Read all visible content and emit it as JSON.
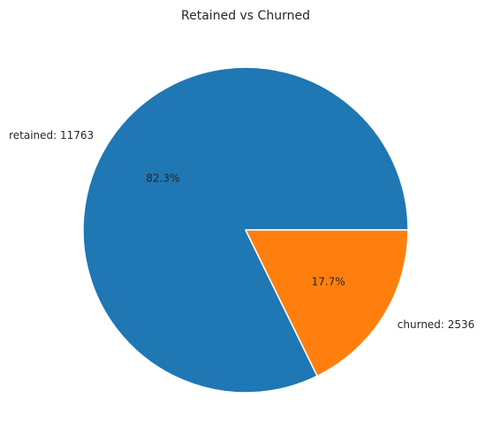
{
  "chart_data": {
    "type": "pie",
    "title": "Retained vs Churned",
    "slices": [
      {
        "label": "retained",
        "value": 11763,
        "display_label": "retained: 11763",
        "pct_label": "82.3%",
        "color": "#1f77b4"
      },
      {
        "label": "churned",
        "value": 2536,
        "display_label": "churned: 2536",
        "pct_label": "17.7%",
        "color": "#ff7f0e"
      }
    ]
  }
}
